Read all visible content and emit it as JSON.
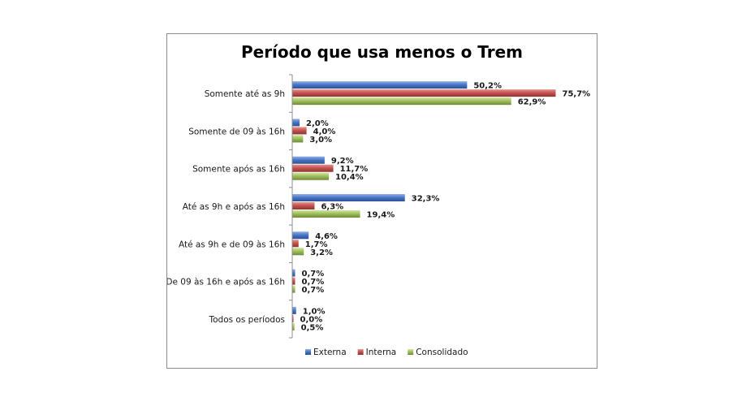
{
  "chart_data": {
    "type": "bar",
    "orientation": "horizontal",
    "title": "Período que usa menos o Trem",
    "categories": [
      "Somente até as 9h",
      "Somente de 09 às 16h",
      "Somente após as 16h",
      "Até as 9h e após  as 16h",
      "Até as 9h e de 09 às 16h",
      "De 09 às 16h e após  as 16h",
      "Todos os períodos"
    ],
    "series": [
      {
        "name": "Externa",
        "color": "#4472c4",
        "values": [
          50.2,
          2.0,
          9.2,
          32.3,
          4.6,
          0.7,
          1.0
        ],
        "labels": [
          "50,2%",
          "2,0%",
          "9,2%",
          "32,3%",
          "4,6%",
          "0,7%",
          "1,0%"
        ]
      },
      {
        "name": "Interna",
        "color": "#c0504d",
        "values": [
          75.7,
          4.0,
          11.7,
          6.3,
          1.7,
          0.7,
          0.0
        ],
        "labels": [
          "75,7%",
          "4,0%",
          "11,7%",
          "6,3%",
          "1,7%",
          "0,7%",
          "0,0%"
        ]
      },
      {
        "name": "Consolidado",
        "color": "#9bbb59",
        "values": [
          62.9,
          3.0,
          10.4,
          19.4,
          3.2,
          0.7,
          0.5
        ],
        "labels": [
          "62,9%",
          "3,0%",
          "10,4%",
          "19,4%",
          "3,2%",
          "0,7%",
          "0,5%"
        ]
      }
    ],
    "xlim": [
      0,
      100
    ],
    "grid": false,
    "legend_position": "bottom"
  }
}
